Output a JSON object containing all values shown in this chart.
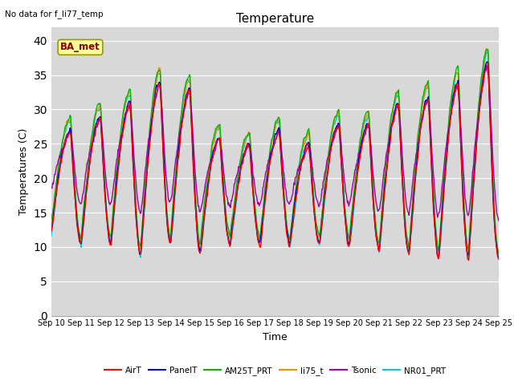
{
  "title": "Temperature",
  "xlabel": "Time",
  "ylabel": "Temperatures (C)",
  "note": "No data for f_li77_temp",
  "legend_label": "BA_met",
  "ylim": [
    0,
    42
  ],
  "yticks": [
    0,
    5,
    10,
    15,
    20,
    25,
    30,
    35,
    40
  ],
  "xtick_labels": [
    "Sep 10",
    "Sep 11",
    "Sep 12",
    "Sep 13",
    "Sep 14",
    "Sep 15",
    "Sep 16",
    "Sep 17",
    "Sep 18",
    "Sep 19",
    "Sep 20",
    "Sep 21",
    "Sep 22",
    "Sep 23",
    "Sep 24",
    "Sep 25"
  ],
  "series_order": [
    "NR01_PRT",
    "li75_t",
    "AM25T_PRT",
    "Tsonic",
    "PanelT",
    "AirT"
  ],
  "series": {
    "AirT": {
      "color": "#ff0000",
      "lw": 1.0
    },
    "PanelT": {
      "color": "#0000cc",
      "lw": 1.0
    },
    "AM25T_PRT": {
      "color": "#00bb00",
      "lw": 1.0
    },
    "li75_t": {
      "color": "#ff8800",
      "lw": 1.0
    },
    "Tsonic": {
      "color": "#aa00aa",
      "lw": 1.0
    },
    "NR01_PRT": {
      "color": "#00cccc",
      "lw": 1.0
    }
  },
  "plot_bg_color": "#d8d8d8",
  "day_peaks": [
    28,
    30,
    32,
    35,
    34,
    27,
    26,
    28,
    26,
    29,
    29,
    32,
    33,
    35,
    38
  ],
  "day_mins": [
    13,
    11,
    11,
    9.5,
    11,
    10,
    11,
    11,
    11,
    11,
    11,
    10,
    9.5,
    9,
    9
  ]
}
